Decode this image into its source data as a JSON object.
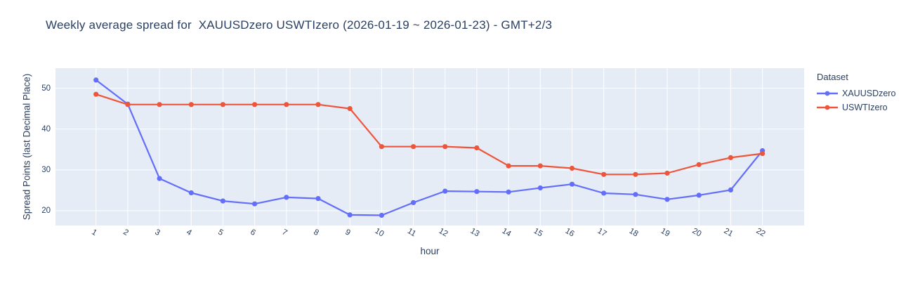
{
  "header": {
    "title": "Weekly average spread for  XAUUSDzero USWTIzero (2026-01-19 ~ 2026-01-23) - GMT+2/3"
  },
  "legend": {
    "title": "Dataset"
  },
  "chart_data": {
    "type": "line",
    "title": "Weekly average spread for  XAUUSDzero USWTIzero (2026-01-19 ~ 2026-01-23) - GMT+2/3",
    "xlabel": "hour",
    "ylabel": "Spread Points (last Decimal Place)",
    "x": [
      1,
      2,
      3,
      4,
      5,
      6,
      7,
      8,
      9,
      10,
      11,
      12,
      13,
      14,
      15,
      16,
      17,
      18,
      19,
      20,
      21,
      22
    ],
    "series": [
      {
        "name": "XAUUSDzero",
        "color": "#636EFA",
        "values": [
          52.0,
          46.1,
          27.9,
          24.4,
          22.4,
          21.7,
          23.3,
          23.0,
          19.0,
          18.9,
          22.0,
          24.8,
          24.7,
          24.6,
          25.6,
          26.5,
          24.3,
          24.0,
          22.8,
          23.8,
          25.1,
          34.7
        ]
      },
      {
        "name": "USWTIzero",
        "color": "#EF553B",
        "values": [
          48.5,
          46.0,
          46.0,
          46.0,
          46.0,
          46.0,
          46.0,
          46.0,
          45.0,
          35.7,
          35.7,
          35.7,
          35.4,
          31.0,
          31.0,
          30.4,
          28.9,
          28.9,
          29.2,
          31.3,
          33.0,
          34.0
        ]
      }
    ],
    "ylim": [
      16.4,
      54.9
    ],
    "yticks": [
      20,
      30,
      40,
      50
    ],
    "grid": true,
    "legend_position": "right",
    "legend_title": "Dataset",
    "plot_bgcolor": "#E5ECF6",
    "grid_color": "#FFFFFF",
    "font_color": "#2a3f5f"
  }
}
